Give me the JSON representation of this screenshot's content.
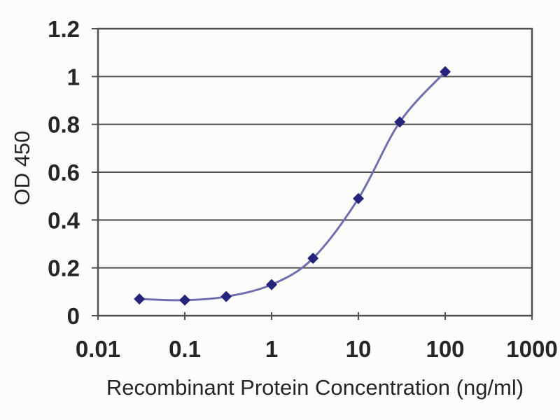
{
  "chart_data": {
    "type": "line",
    "title": "",
    "xlabel": "Recombinant Protein Concentration (ng/ml)",
    "ylabel": "OD 450",
    "x_scale": "log",
    "y_scale": "linear",
    "xlim": [
      0.01,
      1000
    ],
    "ylim": [
      0,
      1.2
    ],
    "x_tick_values": [
      0.01,
      0.1,
      1,
      10,
      100,
      1000
    ],
    "x_tick_labels": [
      "0.01",
      "0.1",
      "1",
      "10",
      "100",
      "1000"
    ],
    "y_tick_values": [
      0,
      0.2,
      0.4,
      0.6,
      0.8,
      1,
      1.2
    ],
    "y_tick_labels": [
      "0",
      "0.2",
      "0.4",
      "0.6",
      "0.8",
      "1",
      "1.2"
    ],
    "grid": "horizontal",
    "legend": "none",
    "series": [
      {
        "marker": "diamond",
        "x": [
          0.03,
          0.1,
          0.3,
          1,
          3,
          10,
          30,
          100
        ],
        "y": [
          0.07,
          0.065,
          0.08,
          0.13,
          0.24,
          0.49,
          0.81,
          1.02
        ]
      }
    ]
  },
  "colors": {
    "background": "#fcfcfb",
    "axis": "#515151",
    "grid": "#515151",
    "text": "#262626",
    "line": "#6f6fae",
    "marker": "#24247c"
  }
}
